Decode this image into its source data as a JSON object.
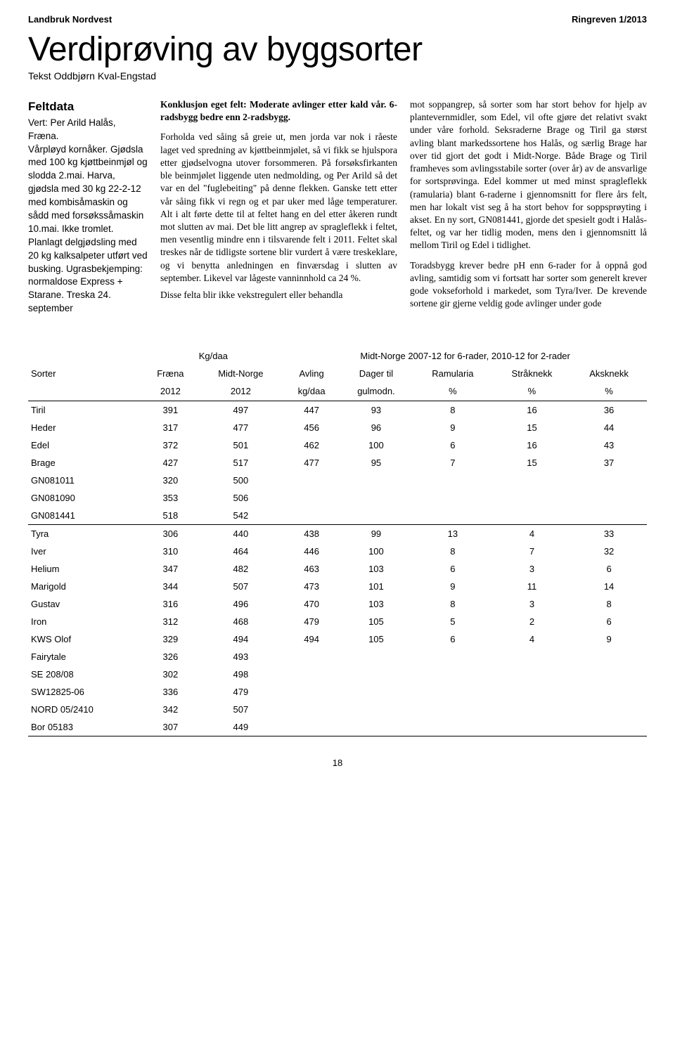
{
  "header": {
    "left": "Landbruk Nordvest",
    "right": "Ringreven 1/2013"
  },
  "title": "Verdiprøving av byggsorter",
  "byline": "Tekst Oddbjørn Kval-Engstad",
  "sidebar": {
    "heading": "Feltdata",
    "body": "Vert: Per Arild Halås, Fræna.\nVårpløyd kornåker. Gjødsla med 100 kg kjøttbeinmjøl og slodda 2.mai. Harva, gjødsla med 30 kg 22-2-12 med kombisåmaskin og sådd med forsøkssåmaskin 10.mai. Ikke tromlet.\nPlanlagt delgjødsling med 20 kg kalksalpeter utført ved busking. Ugrasbekjemping: normaldose Express + Starane. Treska 24. september"
  },
  "col2": {
    "lead": "Konklusjon eget felt: Moderate avlinger etter kald vår. 6-radsbygg bedre enn 2-radsbygg.",
    "body": "Forholda ved såing så greie ut, men jorda var nok i råeste laget ved spredning av kjøttbeinmjølet, så vi fikk se hjulspora etter gjødselvogna utover forsommeren. På forsøksfirkanten ble beinmjølet liggende uten nedmolding, og Per Arild så det var en del \"fuglebeiting\" på denne flekken. Ganske tett etter vår såing fikk vi regn og et par uker med låge temperaturer. Alt i alt førte dette til at feltet hang en del etter åkeren rundt mot slutten av mai. Det ble litt angrep av spragleflekk i feltet, men vesentlig mindre enn i tilsvarende felt i 2011. Feltet skal treskes når de tidligste sortene blir vurdert å være treskeklare, og vi benytta anledningen en finværsdag i slutten av september. Likevel var lågeste vanninnhold ca 24 %.",
    "tail": "Disse felta blir ikke vekstregulert eller behandla"
  },
  "col3": {
    "body": "mot soppangrep, så sorter som har stort behov for hjelp av plantevernmidler, som Edel, vil ofte gjøre det relativt svakt under våre forhold. Seksraderne Brage og Tiril ga størst avling blant markedssortene hos Halås, og særlig Brage har over tid gjort det godt i Midt-Norge. Både Brage og Tiril framheves som avlingsstabile sorter (over år) av de ansvarlige for sortsprøvinga. Edel kommer ut med minst spragleflekk (ramularia) blant 6-raderne i gjennomsnitt for flere års felt, men har lokalt vist seg å ha stort behov for soppsprøyting i akset. En ny sort, GN081441, gjorde det spesielt godt i Halås-feltet, og var her tidlig moden, mens den i gjennomsnitt lå mellom Tiril og Edel i tidlighet.",
    "body2": "Toradsbygg krever bedre pH enn 6-rader for å oppnå god avling, samtidig som vi fortsatt har sorter som generelt krever gode vokseforhold i markedet, som Tyra/Iver. De krevende sortene gir gjerne veldig gode avlinger under gode"
  },
  "table": {
    "super_left": "Kg/daa",
    "super_right": "Midt-Norge 2007-12 for 6-rader, 2010-12 for 2-rader",
    "columns_row1": [
      "Sorter",
      "Fræna",
      "Midt-Norge",
      "Avling",
      "Dager til",
      "Ramularia",
      "Stråknekk",
      "Aksknekk"
    ],
    "columns_row2": [
      "",
      "2012",
      "2012",
      "kg/daa",
      "gulmodn.",
      "%",
      "%",
      "%"
    ],
    "rows": [
      {
        "name": "Tiril",
        "vals": [
          "391",
          "497",
          "447",
          "93",
          "8",
          "16",
          "36"
        ],
        "sep": false
      },
      {
        "name": "Heder",
        "vals": [
          "317",
          "477",
          "456",
          "96",
          "9",
          "15",
          "44"
        ],
        "sep": false
      },
      {
        "name": "Edel",
        "vals": [
          "372",
          "501",
          "462",
          "100",
          "6",
          "16",
          "43"
        ],
        "sep": false
      },
      {
        "name": "Brage",
        "vals": [
          "427",
          "517",
          "477",
          "95",
          "7",
          "15",
          "37"
        ],
        "sep": false
      },
      {
        "name": "GN081011",
        "vals": [
          "320",
          "500",
          "",
          "",
          "",
          "",
          ""
        ],
        "sep": false
      },
      {
        "name": "GN081090",
        "vals": [
          "353",
          "506",
          "",
          "",
          "",
          "",
          ""
        ],
        "sep": false
      },
      {
        "name": "GN081441",
        "vals": [
          "518",
          "542",
          "",
          "",
          "",
          "",
          ""
        ],
        "sep": true
      },
      {
        "name": "Tyra",
        "vals": [
          "306",
          "440",
          "438",
          "99",
          "13",
          "4",
          "33"
        ],
        "sep": false
      },
      {
        "name": "Iver",
        "vals": [
          "310",
          "464",
          "446",
          "100",
          "8",
          "7",
          "32"
        ],
        "sep": false
      },
      {
        "name": "Helium",
        "vals": [
          "347",
          "482",
          "463",
          "103",
          "6",
          "3",
          "6"
        ],
        "sep": false
      },
      {
        "name": "Marigold",
        "vals": [
          "344",
          "507",
          "473",
          "101",
          "9",
          "11",
          "14"
        ],
        "sep": false
      },
      {
        "name": "Gustav",
        "vals": [
          "316",
          "496",
          "470",
          "103",
          "8",
          "3",
          "8"
        ],
        "sep": false
      },
      {
        "name": "Iron",
        "vals": [
          "312",
          "468",
          "479",
          "105",
          "5",
          "2",
          "6"
        ],
        "sep": false
      },
      {
        "name": "KWS Olof",
        "vals": [
          "329",
          "494",
          "494",
          "105",
          "6",
          "4",
          "9"
        ],
        "sep": false
      },
      {
        "name": "Fairytale",
        "vals": [
          "326",
          "493",
          "",
          "",
          "",
          "",
          ""
        ],
        "sep": false
      },
      {
        "name": "SE 208/08",
        "vals": [
          "302",
          "498",
          "",
          "",
          "",
          "",
          ""
        ],
        "sep": false
      },
      {
        "name": "SW12825-06",
        "vals": [
          "336",
          "479",
          "",
          "",
          "",
          "",
          ""
        ],
        "sep": false
      },
      {
        "name": "NORD 05/2410",
        "vals": [
          "342",
          "507",
          "",
          "",
          "",
          "",
          ""
        ],
        "sep": false
      },
      {
        "name": "Bor 05183",
        "vals": [
          "307",
          "449",
          "",
          "",
          "",
          "",
          ""
        ],
        "sep": true
      }
    ]
  },
  "page_number": "18"
}
